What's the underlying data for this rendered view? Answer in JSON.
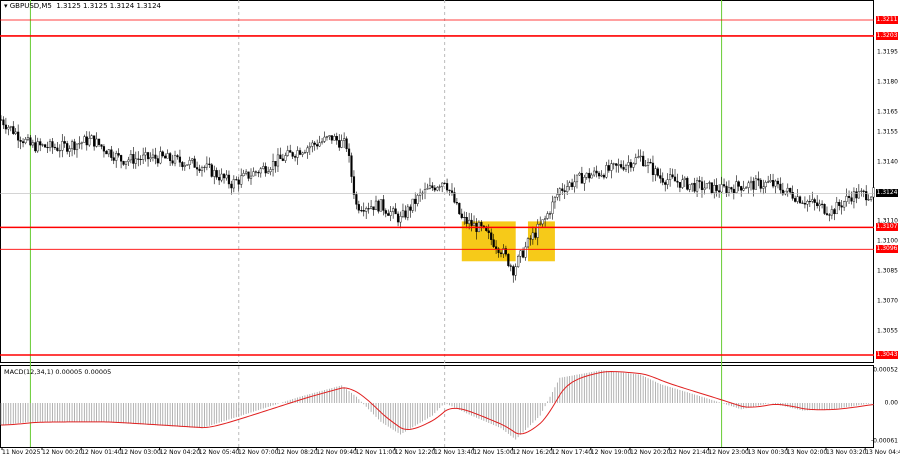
{
  "header": {
    "symbol": "GBPUSD,M5",
    "ohlc": "1.3125 1.3125 1.3124 1.3124"
  },
  "macd": {
    "label": "MACD(12,34,1) 0.00005 0.00005",
    "axis": [
      "0.00052",
      "0.00",
      "-0.00061"
    ],
    "axis_values": [
      0.00052,
      0,
      -0.00061
    ]
  },
  "price_axis": [
    "1.3195",
    "1.3180",
    "1.3165",
    "1.3155",
    "1.3140",
    "1.3110",
    "1.3100",
    "1.3085",
    "1.3070",
    "1.3055"
  ],
  "current_price": "1.3124",
  "levels": [
    {
      "label": "1.3211",
      "weight": "thin"
    },
    {
      "label": "1.3203",
      "weight": "thick"
    },
    {
      "label": "1.3107",
      "weight": "thick"
    },
    {
      "label": "1.3096",
      "weight": "thin"
    },
    {
      "label": "1.3043",
      "weight": "thick"
    }
  ],
  "time_axis": [
    "11 Nov 2025",
    "12 Nov 00:20",
    "12 Nov 01:40",
    "12 Nov 03:00",
    "12 Nov 04:20",
    "12 Nov 05:40",
    "12 Nov 07:00",
    "12 Nov 08:20",
    "12 Nov 09:40",
    "12 Nov 11:00",
    "12 Nov 12:20",
    "12 Nov 13:40",
    "12 Nov 15:00",
    "12 Nov 16:20",
    "12 Nov 17:40",
    "12 Nov 19:00",
    "12 Nov 20:20",
    "12 Nov 21:40",
    "12 Nov 23:00",
    "13 Nov 00:30",
    "13 Nov 02:00",
    "13 Nov 03:20",
    "13 Nov 04:40"
  ],
  "colors": {
    "level": "#ff0000",
    "candle": "#000000",
    "highlight": "#f5c400",
    "session_line": "#66cc33",
    "signal": "#e02020",
    "histogram": "#a0a0a0"
  },
  "session_lines": [
    "11 Nov 23:55",
    "12 Nov 23:25"
  ],
  "day_separators": [
    "12 Nov 07:00",
    "12 Nov 14:00"
  ],
  "highlights": [
    {
      "from": "12 Nov 14:35",
      "to": "12 Nov 16:25",
      "top": 1.311,
      "bottom": 1.309
    },
    {
      "from": "12 Nov 16:50",
      "to": "12 Nov 17:45",
      "top": 1.311,
      "bottom": 1.309
    }
  ],
  "chart_data": {
    "type": "candlestick",
    "timeframe": "M5",
    "price_path": [
      [
        "11 Nov 22:55",
        1.3161
      ],
      [
        "11 Nov 23:55",
        1.3148
      ],
      [
        "12 Nov 00:55",
        1.3147
      ],
      [
        "12 Nov 02:00",
        1.3151
      ],
      [
        "12 Nov 03:00",
        1.3141
      ],
      [
        "12 Nov 04:20",
        1.3142
      ],
      [
        "12 Nov 05:45",
        1.3138
      ],
      [
        "12 Nov 06:45",
        1.3129
      ],
      [
        "12 Nov 07:45",
        1.3136
      ],
      [
        "12 Nov 09:05",
        1.3146
      ],
      [
        "12 Nov 10:10",
        1.3152
      ],
      [
        "12 Nov 10:40",
        1.3148
      ],
      [
        "12 Nov 11:00",
        1.3118
      ],
      [
        "12 Nov 11:50",
        1.3118
      ],
      [
        "12 Nov 12:30",
        1.3111
      ],
      [
        "12 Nov 13:10",
        1.3123
      ],
      [
        "12 Nov 14:00",
        1.3131
      ],
      [
        "12 Nov 14:35",
        1.3111
      ],
      [
        "12 Nov 15:15",
        1.3106
      ],
      [
        "12 Nov 15:55",
        1.3096
      ],
      [
        "12 Nov 16:20",
        1.3086
      ],
      [
        "12 Nov 16:55",
        1.3101
      ],
      [
        "12 Nov 17:25",
        1.3111
      ],
      [
        "12 Nov 17:55",
        1.3126
      ],
      [
        "12 Nov 18:40",
        1.3132
      ],
      [
        "12 Nov 19:40",
        1.3136
      ],
      [
        "12 Nov 20:40",
        1.3142
      ],
      [
        "12 Nov 21:20",
        1.3132
      ],
      [
        "12 Nov 22:25",
        1.3128
      ],
      [
        "12 Nov 23:25",
        1.3126
      ],
      [
        "13 Nov 00:05",
        1.3128
      ],
      [
        "13 Nov 01:05",
        1.3129
      ],
      [
        "13 Nov 02:10",
        1.3121
      ],
      [
        "13 Nov 03:10",
        1.3115
      ],
      [
        "13 Nov 03:50",
        1.3123
      ],
      [
        "13 Nov 04:35",
        1.3124
      ]
    ],
    "macd_path": [
      [
        "11 Nov 22:55",
        -0.00035
      ],
      [
        "11 Nov 23:55",
        -0.0003
      ],
      [
        "12 Nov 02:20",
        -0.0003
      ],
      [
        "12 Nov 05:45",
        -0.0004
      ],
      [
        "12 Nov 07:45",
        -0.0001
      ],
      [
        "12 Nov 09:05",
        0.0001
      ],
      [
        "12 Nov 10:30",
        0.00028
      ],
      [
        "12 Nov 11:00",
        0.0001
      ],
      [
        "12 Nov 11:50",
        -0.0003
      ],
      [
        "12 Nov 12:30",
        -0.0005
      ],
      [
        "12 Nov 13:35",
        -0.0002
      ],
      [
        "12 Nov 14:00",
        0.0
      ],
      [
        "12 Nov 14:55",
        -0.0002
      ],
      [
        "12 Nov 15:55",
        -0.0004
      ],
      [
        "12 Nov 16:25",
        -0.00058
      ],
      [
        "12 Nov 17:15",
        -0.0002
      ],
      [
        "12 Nov 17:55",
        0.0004
      ],
      [
        "12 Nov 19:20",
        0.00052
      ],
      [
        "12 Nov 20:40",
        0.00045
      ],
      [
        "12 Nov 21:20",
        0.0003
      ],
      [
        "12 Nov 22:45",
        0.0001
      ],
      [
        "13 Nov 00:05",
        -0.0001
      ],
      [
        "13 Nov 01:05",
        0.0
      ],
      [
        "13 Nov 02:10",
        -0.00012
      ],
      [
        "13 Nov 03:10",
        -0.0001
      ],
      [
        "13 Nov 04:35",
        0.0
      ]
    ]
  }
}
